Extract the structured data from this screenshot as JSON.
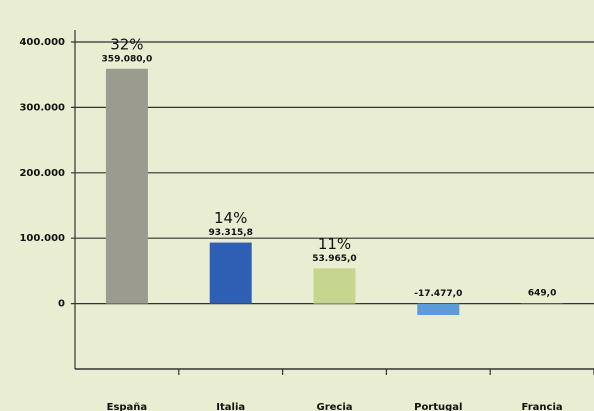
{
  "chart_data": {
    "type": "bar",
    "categories": [
      "España",
      "Italia",
      "Grecia",
      "Portugal",
      "Francia"
    ],
    "values": [
      359080.0,
      93315.8,
      53965.0,
      -17477.0,
      649.0
    ],
    "value_labels": [
      "359.080,0",
      "93.315,8",
      "53.965,0",
      "-17.477,0",
      "649,0"
    ],
    "percent_labels": [
      "32%",
      "14%",
      "11%",
      null,
      null
    ],
    "colors": [
      "#9b9b90",
      "#2f5fb5",
      "#c6d68e",
      "#5b9bd8",
      "#86867c"
    ],
    "ylim": [
      -100000,
      400000
    ],
    "yticks": [
      0,
      {
        "value": 100000,
        "label": "100.000"
      },
      {
        "value": 200000,
        "label": "200.000"
      },
      {
        "value": 300000,
        "label": "300.000"
      },
      {
        "value": 400000,
        "label": "400.000"
      }
    ],
    "grid": true
  }
}
